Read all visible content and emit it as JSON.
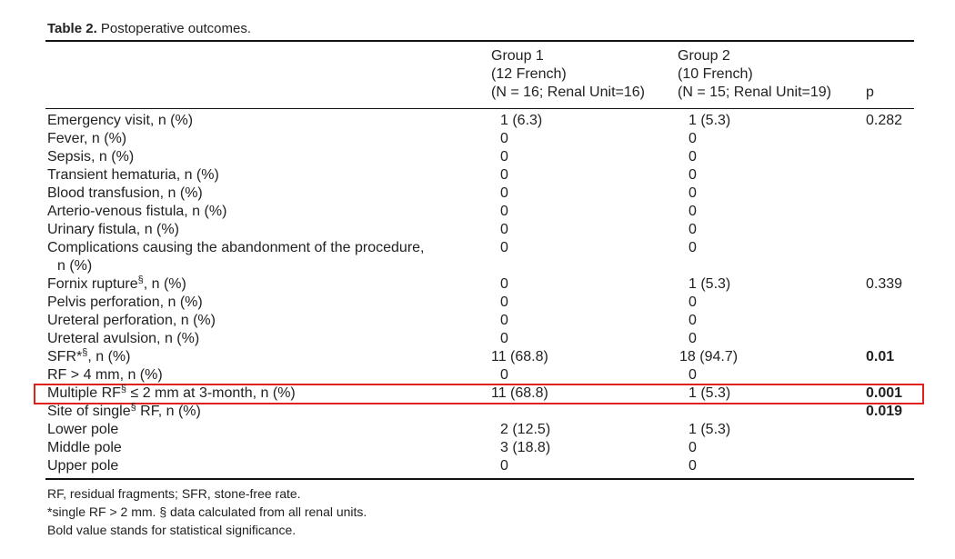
{
  "header": {
    "title_label": "Table 2.",
    "title": "Postoperative outcomes."
  },
  "table": {
    "columns": [
      {
        "name": "Group 1",
        "sub": "(12 French)",
        "n": "(N = 16; Renal Unit=16)"
      },
      {
        "name": "Group 2",
        "sub": "(10 French)",
        "n": "(N = 15; Renal Unit=19)"
      }
    ],
    "p_header": "p",
    "rows": [
      {
        "label": "Emergency visit, n (%)",
        "g1": "1 (6.3)",
        "g2": "1 (5.3)",
        "p": "0.282"
      },
      {
        "label": "Fever, n (%)",
        "g1": "0",
        "g2": "0"
      },
      {
        "label": "Sepsis, n (%)",
        "g1": "0",
        "g2": "0"
      },
      {
        "label": "Transient hematuria, n (%)",
        "g1": "0",
        "g2": "0"
      },
      {
        "label": "Blood transfusion, n (%)",
        "g1": "0",
        "g2": "0"
      },
      {
        "label": "Arterio-venous fistula, n (%)",
        "g1": "0",
        "g2": "0"
      },
      {
        "label": "Urinary fistula, n (%)",
        "g1": "0",
        "g2": "0"
      },
      {
        "label": "Complications causing the abandonment of the procedure,",
        "label_cont": "n (%)",
        "g1": "0",
        "g2": "0"
      },
      {
        "label": {
          "text": "Fornix rupture",
          "sup": "§",
          "after": ", n (%)"
        },
        "g1": "0",
        "g2": "1 (5.3)",
        "p": "0.339"
      },
      {
        "label": "Pelvis perforation, n (%)",
        "g1": "0",
        "g2": "0"
      },
      {
        "label": "Ureteral perforation, n (%)",
        "g1": "0",
        "g2": "0"
      },
      {
        "label": "Ureteral avulsion, n (%)",
        "g1": "0",
        "g2": "0"
      },
      {
        "label": {
          "text": "SFR*",
          "sup": "§",
          "after": ", n (%)"
        },
        "g1": "11 (68.8)",
        "g2": "18 (94.7)",
        "p": "0.01",
        "p_bold": true
      },
      {
        "label": "RF > 4 mm, n (%)",
        "g1": "0",
        "g2": "0"
      },
      {
        "label": {
          "text": "Multiple RF",
          "sup": "§",
          "after": " ≤ 2 mm at 3-month, n (%)"
        },
        "g1": "11 (68.8)",
        "g2": "1 (5.3)",
        "p": "0.001",
        "p_bold": true
      },
      {
        "label": {
          "text": "Site of single",
          "sup": "§",
          "after": " RF, n (%)"
        },
        "p": "0.019",
        "p_bold": true
      },
      {
        "label": "Lower pole",
        "g1": "2 (12.5)",
        "g2": "1 (5.3)"
      },
      {
        "label": "Middle pole",
        "g1": "3 (18.8)",
        "g2": "0"
      },
      {
        "label": "Upper pole",
        "g1": "0",
        "g2": "0"
      }
    ]
  },
  "footnotes": [
    "RF, residual fragments; SFR, stone-free rate.",
    "*single RF > 2 mm. § data calculated from all renal units.",
    "Bold value stands for statistical significance."
  ]
}
